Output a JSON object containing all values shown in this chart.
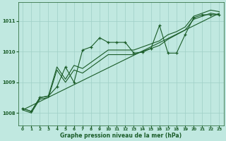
{
  "title": "Graphe pression niveau de la mer (hPa)",
  "background_color": "#c0e8e0",
  "plot_bg_color": "#c0e8e0",
  "grid_color": "#9ecfc5",
  "line_color": "#1a5c28",
  "xlim": [
    -0.5,
    23.5
  ],
  "ylim": [
    1007.6,
    1011.6
  ],
  "yticks": [
    1008,
    1009,
    1010,
    1011
  ],
  "xticks": [
    0,
    1,
    2,
    3,
    4,
    5,
    6,
    7,
    8,
    9,
    10,
    11,
    12,
    13,
    14,
    15,
    16,
    17,
    18,
    19,
    20,
    21,
    22,
    23
  ],
  "s1_x": [
    0,
    1,
    2,
    3,
    4,
    5,
    6,
    7,
    8,
    9,
    10,
    11,
    12,
    13,
    14,
    15,
    16,
    17,
    18,
    19,
    20,
    21,
    22,
    23
  ],
  "s1_y": [
    1008.15,
    1008.05,
    1008.5,
    1008.55,
    1009.5,
    1009.1,
    1009.55,
    1009.45,
    1009.65,
    1009.85,
    1010.05,
    1010.05,
    1010.05,
    1010.05,
    1010.15,
    1010.25,
    1010.35,
    1010.55,
    1010.65,
    1010.8,
    1011.15,
    1011.25,
    1011.35,
    1011.3
  ],
  "s2_x": [
    0,
    1,
    2,
    3,
    4,
    5,
    6,
    7,
    8,
    9,
    10,
    11,
    12,
    13,
    14,
    15,
    16,
    17,
    18,
    19,
    20,
    21,
    22,
    23
  ],
  "s2_y": [
    1008.1,
    1008.0,
    1008.45,
    1008.5,
    1009.4,
    1009.0,
    1009.4,
    1009.3,
    1009.5,
    1009.7,
    1009.9,
    1009.9,
    1009.9,
    1009.9,
    1010.0,
    1010.1,
    1010.2,
    1010.4,
    1010.55,
    1010.7,
    1011.05,
    1011.15,
    1011.25,
    1011.2
  ],
  "s3_x": [
    0,
    1,
    2,
    3,
    4,
    5,
    6,
    7,
    8,
    9,
    10,
    11,
    12,
    13,
    14,
    15,
    16,
    17,
    18,
    19,
    20,
    21,
    22,
    23
  ],
  "s3_y": [
    1008.15,
    1008.05,
    1008.5,
    1008.55,
    1008.85,
    1009.5,
    1009.0,
    1010.05,
    1010.15,
    1010.45,
    1010.3,
    1010.3,
    1010.3,
    1009.95,
    1009.98,
    1010.1,
    1010.85,
    1009.95,
    1009.95,
    1010.55,
    1011.1,
    1011.2,
    1011.2,
    1011.2
  ],
  "trend_x": [
    0,
    23
  ],
  "trend_y": [
    1008.1,
    1011.25
  ]
}
